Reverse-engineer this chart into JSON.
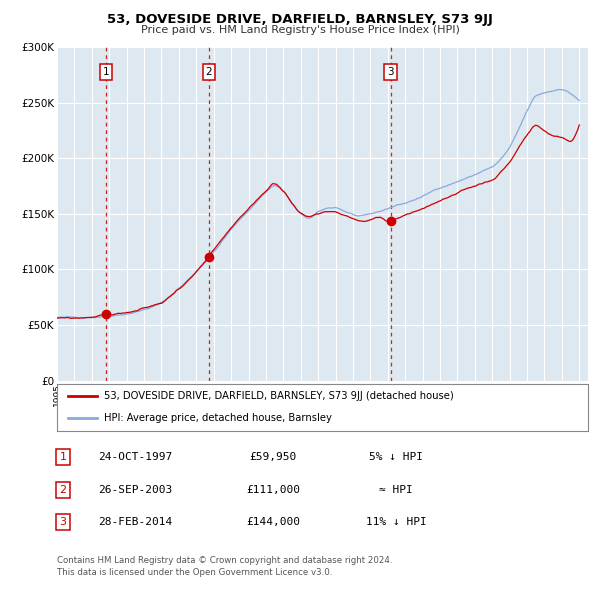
{
  "title": "53, DOVESIDE DRIVE, DARFIELD, BARNSLEY, S73 9JJ",
  "subtitle": "Price paid vs. HM Land Registry's House Price Index (HPI)",
  "hpi_label": "HPI: Average price, detached house, Barnsley",
  "property_label": "53, DOVESIDE DRIVE, DARFIELD, BARNSLEY, S73 9JJ (detached house)",
  "property_color": "#cc0000",
  "hpi_color": "#88aadd",
  "plot_bg_color": "#dde8f0",
  "sale_dates": [
    1997.81,
    2003.73,
    2014.16
  ],
  "sale_prices": [
    59950,
    111000,
    144000
  ],
  "sale_labels": [
    "1",
    "2",
    "3"
  ],
  "sale_info": [
    {
      "label": "1",
      "date": "24-OCT-1997",
      "price": "£59,950",
      "hpi_note": "5% ↓ HPI"
    },
    {
      "label": "2",
      "date": "26-SEP-2003",
      "price": "£111,000",
      "hpi_note": "≈ HPI"
    },
    {
      "label": "3",
      "date": "28-FEB-2014",
      "price": "£144,000",
      "hpi_note": "11% ↓ HPI"
    }
  ],
  "footer_line1": "Contains HM Land Registry data © Crown copyright and database right 2024.",
  "footer_line2": "This data is licensed under the Open Government Licence v3.0.",
  "ylim": [
    0,
    300000
  ],
  "yticks": [
    0,
    50000,
    100000,
    150000,
    200000,
    250000,
    300000
  ],
  "ylabel_fmt": [
    "£0",
    "£50K",
    "£100K",
    "£150K",
    "£200K",
    "£250K",
    "£300K"
  ]
}
